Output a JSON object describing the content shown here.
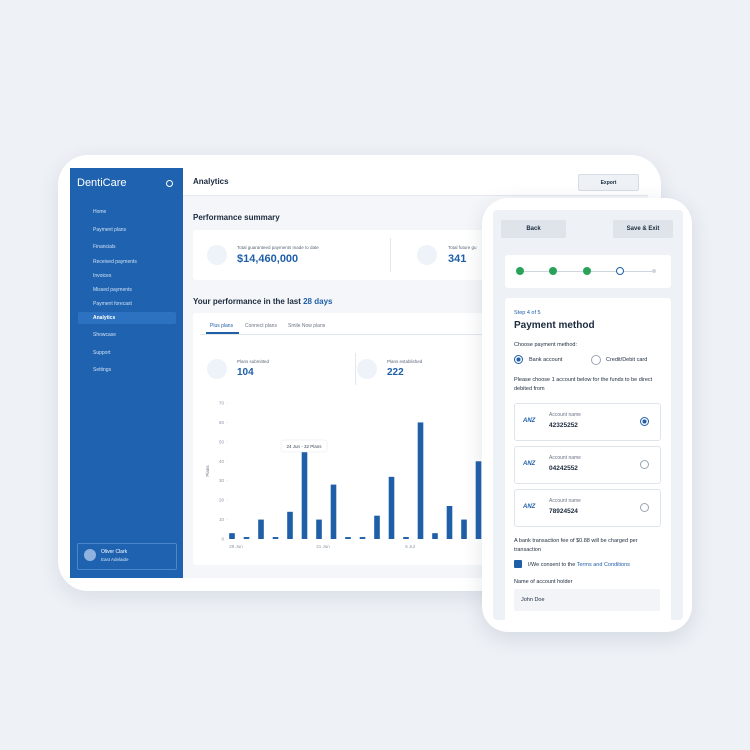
{
  "sidebar": {
    "brand": "DentiCare",
    "nav": [
      "Home",
      "Payment plans",
      "Financials"
    ],
    "subnav": [
      "Received payments",
      "Invoices",
      "Missed payments",
      "Payment forecast",
      "Analytics"
    ],
    "nav_bottom": [
      "Showcase",
      "Support",
      "Settings"
    ],
    "user": {
      "name": "Oliver Clark",
      "location": "East Adelaide"
    }
  },
  "header": {
    "title": "Analytics",
    "export": "Export"
  },
  "summary": {
    "title": "Performance summary",
    "cards": [
      {
        "label": "Total guaranteed payments made to date",
        "value": "$14,460,000"
      },
      {
        "label": "Total future gu",
        "value": "341"
      }
    ]
  },
  "performance": {
    "title": "Your performance in the last",
    "period": "28 days",
    "tabs": [
      "Plus plans",
      "Connect plans",
      "Smile Now plans"
    ],
    "stats": [
      {
        "label": "Plans submitted",
        "value": "104"
      },
      {
        "label": "Plans established",
        "value": "222"
      }
    ]
  },
  "chart_data": {
    "type": "bar",
    "y_label": "Plans",
    "tooltip": "24 Jun - 32 Plans",
    "color": "#1f5fa8",
    "categories": [
      "29 Jun",
      null,
      null,
      null,
      null,
      null,
      "21 Jun",
      null,
      null,
      null,
      null,
      null,
      "5 Jul",
      null,
      null,
      null,
      null,
      null
    ],
    "values": [
      3,
      1,
      10,
      1,
      14,
      45,
      10,
      28,
      1,
      1,
      12,
      32,
      1,
      60,
      3,
      17,
      10,
      40
    ],
    "ylim": [
      0,
      70
    ],
    "yticks": [
      0,
      10,
      20,
      30,
      40,
      50,
      60,
      70
    ]
  },
  "phone": {
    "back": "Back",
    "save": "Save & Exit",
    "step": "Step 4 of 5",
    "title": "Payment method",
    "choose": "Choose payment method:",
    "options": [
      "Bank account",
      "Credit/Debit card"
    ],
    "instruction": "Please choose 1 account below for the funds to be direct debited from",
    "accounts": [
      {
        "bank": "ANZ",
        "label": "Account name",
        "number": "42325252"
      },
      {
        "bank": "ANZ",
        "label": "Account name",
        "number": "04242552"
      },
      {
        "bank": "ANZ",
        "label": "Account name",
        "number": "78924524"
      }
    ],
    "fee": "A bank transaction fee of $0.88 will be charged per transaction",
    "consent": "I/We consent to the",
    "terms": "Terms and Conditions",
    "holder_label": "Name of account holder",
    "holder_value": "John Doe"
  }
}
